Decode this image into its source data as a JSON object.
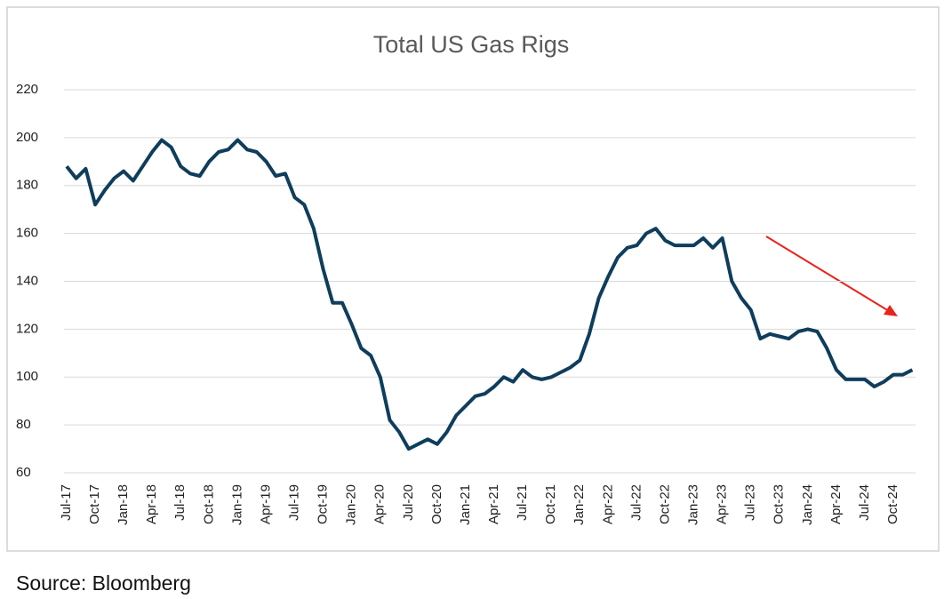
{
  "chart_data": {
    "type": "line",
    "title": "Total US Gas Rigs",
    "source": "Source: Bloomberg",
    "categories": [
      "Jul-17",
      null,
      null,
      "Oct-17",
      null,
      null,
      "Jan-18",
      null,
      null,
      "Apr-18",
      null,
      null,
      "Jul-18",
      null,
      null,
      "Oct-18",
      null,
      null,
      "Jan-19",
      null,
      null,
      "Apr-19",
      null,
      null,
      "Jul-19",
      null,
      null,
      "Oct-19",
      null,
      null,
      "Jan-20",
      null,
      null,
      "Apr-20",
      null,
      null,
      "Jul-20",
      null,
      null,
      "Oct-20",
      null,
      null,
      "Jan-21",
      null,
      null,
      "Apr-21",
      null,
      null,
      "Jul-21",
      null,
      null,
      "Oct-21",
      null,
      null,
      "Jan-22",
      null,
      null,
      "Apr-22",
      null,
      null,
      "Jul-22",
      null,
      null,
      "Oct-22",
      null,
      null,
      "Jan-23",
      null,
      null,
      "Apr-23",
      null,
      null,
      "Jul-23",
      null,
      null,
      "Oct-23",
      null,
      null,
      "Jan-24",
      null,
      null,
      "Apr-24",
      null,
      null,
      "Jul-24",
      null,
      null,
      "Oct-24",
      null,
      null
    ],
    "series": [
      {
        "name": "Total US Gas Rigs",
        "color": "#0f3d5c",
        "values": [
          188,
          183,
          187,
          172,
          178,
          183,
          186,
          182,
          188,
          194,
          199,
          196,
          188,
          185,
          184,
          190,
          194,
          195,
          199,
          195,
          194,
          190,
          184,
          185,
          175,
          172,
          162,
          145,
          131,
          131,
          122,
          112,
          109,
          100,
          82,
          77,
          70,
          72,
          74,
          72,
          77,
          84,
          88,
          92,
          93,
          96,
          100,
          98,
          103,
          100,
          99,
          100,
          102,
          104,
          107,
          118,
          133,
          142,
          150,
          154,
          155,
          160,
          162,
          157,
          155,
          155,
          155,
          158,
          154,
          158,
          140,
          133,
          128,
          116,
          118,
          117,
          116,
          119,
          120,
          119,
          112,
          103,
          99,
          99,
          99,
          96,
          98,
          101,
          101,
          103
        ]
      }
    ],
    "ylim": [
      60,
      220
    ],
    "yticks": [
      60,
      80,
      100,
      120,
      140,
      160,
      180,
      200,
      220
    ],
    "grid": true
  }
}
